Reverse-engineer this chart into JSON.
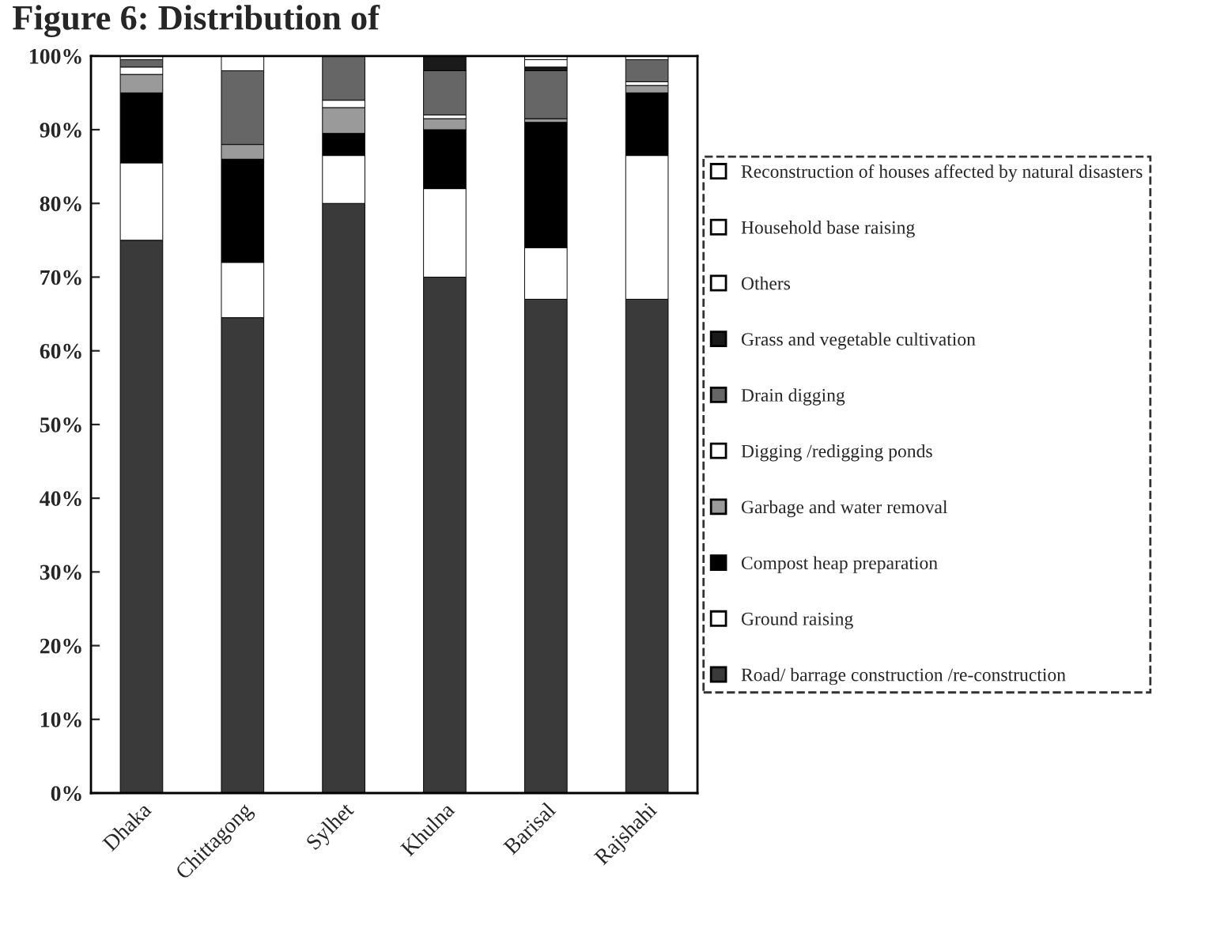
{
  "chart_data": {
    "type": "bar",
    "stacked": true,
    "title": "Figure 6: Distribution of",
    "categories": [
      "Dhaka",
      "Chittagong",
      "Sylhet",
      "Khulna",
      "Barisal",
      "Rajshahi"
    ],
    "series": [
      {
        "name": "Road/ barrage construction /re-construction",
        "color": "#3a3a3a",
        "values": [
          75,
          64.5,
          80,
          70,
          67,
          67
        ]
      },
      {
        "name": "Ground raising",
        "color": "#ffffff",
        "values": [
          10.5,
          7.5,
          6.5,
          12,
          7,
          19.5
        ]
      },
      {
        "name": "Compost heap preparation",
        "color": "#000000",
        "values": [
          9.5,
          14,
          3,
          8,
          17,
          8.5
        ]
      },
      {
        "name": "Garbage and water removal",
        "color": "#9a9a9a",
        "values": [
          2.5,
          2,
          3.5,
          1.5,
          0.5,
          1
        ]
      },
      {
        "name": "Digging /redigging ponds",
        "color": "#ffffff",
        "values": [
          1,
          null,
          1,
          0.5,
          null,
          0.5
        ]
      },
      {
        "name": "Drain digging",
        "color": "#666666",
        "values": [
          1,
          10,
          6,
          6,
          6.5,
          3
        ]
      },
      {
        "name": "Grass and vegetable cultivation",
        "color": "#1a1a1a",
        "values": [
          null,
          null,
          null,
          2,
          0.5,
          null
        ]
      },
      {
        "name": "Others",
        "color": "#ffffff",
        "values": [
          null,
          2,
          null,
          null,
          1,
          null
        ]
      },
      {
        "name": "Household base raising",
        "color": "#ffffff",
        "values": [
          null,
          null,
          null,
          null,
          0.5,
          0.5
        ]
      },
      {
        "name": "Reconstruction of houses affected by natural disasters",
        "color": "#ffffff",
        "values": [
          0.5,
          null,
          null,
          null,
          null,
          null
        ]
      }
    ],
    "ylim": [
      0,
      100
    ],
    "yticks": [
      {
        "value": 0,
        "label": "0%"
      },
      {
        "value": 10,
        "label": "10%"
      },
      {
        "value": 20,
        "label": "20%"
      },
      {
        "value": 30,
        "label": "30%"
      },
      {
        "value": 40,
        "label": "40%"
      },
      {
        "value": 50,
        "label": "50%"
      },
      {
        "value": 60,
        "label": "60%"
      },
      {
        "value": 70,
        "label": "70%"
      },
      {
        "value": 80,
        "label": "80%"
      },
      {
        "value": 90,
        "label": "90%"
      },
      {
        "value": 100,
        "label": "100%"
      }
    ],
    "grid": false,
    "legend": "right"
  }
}
